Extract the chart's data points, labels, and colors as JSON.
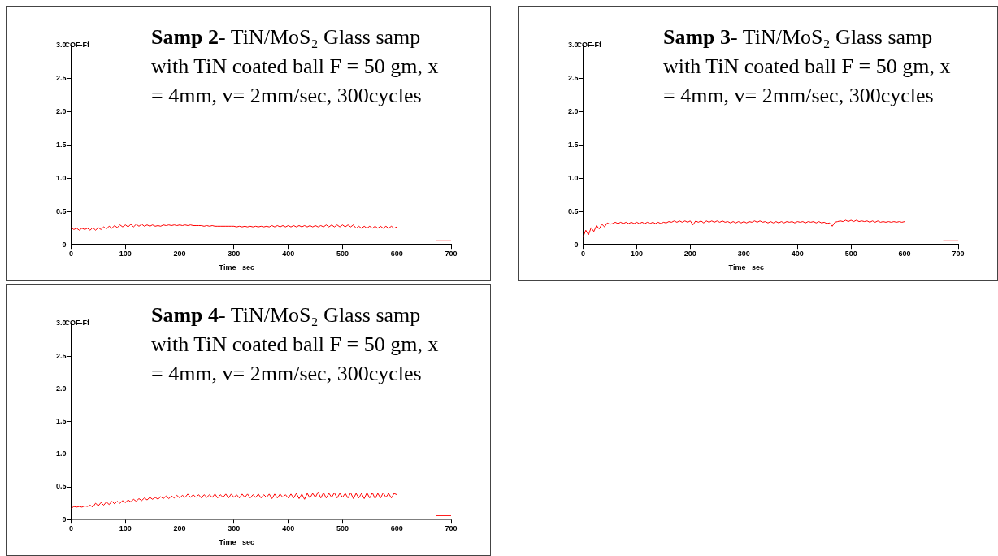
{
  "chart_data": [
    {
      "type": "line",
      "title": "Samp 2",
      "subtitle": "- TiN/MoS₂ Glass samp with TiN coated ball F = 50 gm, x = 4mm, v= 2mm/sec, 300cycles",
      "xlabel": "Time   sec",
      "ylabel": "COF-Ff",
      "xlim": [
        0,
        700
      ],
      "xticks": [
        0,
        100,
        200,
        300,
        400,
        500,
        600,
        700
      ],
      "ylim": [
        0,
        3
      ],
      "yticks": [
        0,
        0.5,
        {
          "value": 1,
          "label": "1.0"
        },
        1.5,
        {
          "value": 2,
          "label": "2.0"
        },
        2.5,
        {
          "value": 3,
          "label": "3.0"
        }
      ],
      "grid": false,
      "legend": false,
      "series": [
        {
          "color": "#ff0000",
          "x": [
            0,
            5,
            10,
            15,
            20,
            25,
            30,
            35,
            40,
            45,
            50,
            55,
            60,
            65,
            70,
            75,
            80,
            85,
            90,
            95,
            100,
            105,
            110,
            115,
            120,
            125,
            130,
            135,
            140,
            145,
            150,
            155,
            160,
            165,
            170,
            175,
            180,
            185,
            190,
            195,
            200,
            205,
            210,
            215,
            220,
            225,
            230,
            235,
            240,
            245,
            250,
            255,
            260,
            265,
            270,
            275,
            280,
            285,
            290,
            295,
            300,
            305,
            310,
            315,
            320,
            325,
            330,
            335,
            340,
            345,
            350,
            355,
            360,
            365,
            370,
            375,
            380,
            385,
            390,
            395,
            400,
            405,
            410,
            415,
            420,
            425,
            430,
            435,
            440,
            445,
            450,
            455,
            460,
            465,
            470,
            475,
            480,
            485,
            490,
            495,
            500,
            505,
            510,
            515,
            520,
            525,
            530,
            535,
            540,
            545,
            550,
            555,
            560,
            565,
            570,
            575,
            580,
            585,
            590,
            595,
            600
          ],
          "values": [
            0.26,
            0.23,
            0.25,
            0.22,
            0.25,
            0.23,
            0.25,
            0.22,
            0.26,
            0.22,
            0.26,
            0.23,
            0.27,
            0.24,
            0.28,
            0.25,
            0.29,
            0.26,
            0.3,
            0.27,
            0.3,
            0.27,
            0.31,
            0.27,
            0.31,
            0.28,
            0.31,
            0.28,
            0.3,
            0.28,
            0.3,
            0.28,
            0.29,
            0.28,
            0.3,
            0.29,
            0.3,
            0.29,
            0.3,
            0.29,
            0.3,
            0.29,
            0.3,
            0.29,
            0.3,
            0.29,
            0.29,
            0.29,
            0.29,
            0.28,
            0.29,
            0.28,
            0.29,
            0.28,
            0.28,
            0.28,
            0.28,
            0.28,
            0.28,
            0.28,
            0.28,
            0.27,
            0.28,
            0.27,
            0.28,
            0.27,
            0.28,
            0.27,
            0.28,
            0.27,
            0.28,
            0.27,
            0.28,
            0.27,
            0.29,
            0.27,
            0.29,
            0.27,
            0.29,
            0.27,
            0.29,
            0.27,
            0.29,
            0.27,
            0.29,
            0.27,
            0.29,
            0.27,
            0.29,
            0.27,
            0.29,
            0.27,
            0.29,
            0.27,
            0.3,
            0.27,
            0.3,
            0.27,
            0.3,
            0.27,
            0.3,
            0.27,
            0.3,
            0.27,
            0.3,
            0.25,
            0.28,
            0.25,
            0.28,
            0.25,
            0.28,
            0.25,
            0.28,
            0.25,
            0.28,
            0.25,
            0.28,
            0.25,
            0.28,
            0.25,
            0.27
          ]
        },
        {
          "color": "#ff0000",
          "x": [
            672,
            700
          ],
          "values": [
            0.06,
            0.06
          ]
        }
      ]
    },
    {
      "type": "line",
      "title": "Samp 3",
      "subtitle": "- TiN/MoS₂ Glass samp with TiN coated ball F = 50 gm, x = 4mm, v= 2mm/sec, 300cycles",
      "xlabel": "Time   sec",
      "ylabel": "COF-Ff",
      "xlim": [
        0,
        700
      ],
      "xticks": [
        0,
        100,
        200,
        300,
        400,
        500,
        600,
        700
      ],
      "ylim": [
        0,
        3
      ],
      "yticks": [
        0,
        0.5,
        {
          "value": 1,
          "label": "1.0"
        },
        1.5,
        {
          "value": 2,
          "label": "2.0"
        },
        2.5,
        {
          "value": 3,
          "label": "3.0"
        }
      ],
      "grid": false,
      "legend": false,
      "series": [
        {
          "color": "#ff0000",
          "x": [
            0,
            5,
            10,
            15,
            20,
            25,
            30,
            35,
            40,
            45,
            50,
            55,
            60,
            65,
            70,
            75,
            80,
            85,
            90,
            95,
            100,
            105,
            110,
            115,
            120,
            125,
            130,
            135,
            140,
            145,
            150,
            155,
            160,
            165,
            170,
            175,
            180,
            185,
            190,
            195,
            200,
            205,
            210,
            215,
            220,
            225,
            230,
            235,
            240,
            245,
            250,
            255,
            260,
            265,
            270,
            275,
            280,
            285,
            290,
            295,
            300,
            305,
            310,
            315,
            320,
            325,
            330,
            335,
            340,
            345,
            350,
            355,
            360,
            365,
            370,
            375,
            380,
            385,
            390,
            395,
            400,
            405,
            410,
            415,
            420,
            425,
            430,
            435,
            440,
            445,
            450,
            455,
            460,
            465,
            470,
            475,
            480,
            485,
            490,
            495,
            500,
            505,
            510,
            515,
            520,
            525,
            530,
            535,
            540,
            545,
            550,
            555,
            560,
            565,
            570,
            575,
            580,
            585,
            590,
            595,
            600
          ],
          "values": [
            0.12,
            0.22,
            0.15,
            0.26,
            0.2,
            0.29,
            0.24,
            0.31,
            0.27,
            0.33,
            0.31,
            0.32,
            0.34,
            0.32,
            0.34,
            0.32,
            0.34,
            0.32,
            0.34,
            0.32,
            0.34,
            0.32,
            0.34,
            0.32,
            0.34,
            0.32,
            0.34,
            0.32,
            0.34,
            0.32,
            0.34,
            0.33,
            0.35,
            0.34,
            0.36,
            0.34,
            0.36,
            0.34,
            0.36,
            0.34,
            0.36,
            0.3,
            0.36,
            0.34,
            0.36,
            0.33,
            0.36,
            0.34,
            0.36,
            0.34,
            0.36,
            0.34,
            0.36,
            0.34,
            0.35,
            0.33,
            0.35,
            0.33,
            0.35,
            0.33,
            0.35,
            0.33,
            0.35,
            0.34,
            0.36,
            0.34,
            0.36,
            0.34,
            0.35,
            0.33,
            0.35,
            0.33,
            0.35,
            0.33,
            0.35,
            0.33,
            0.35,
            0.34,
            0.35,
            0.33,
            0.35,
            0.34,
            0.35,
            0.33,
            0.35,
            0.34,
            0.35,
            0.33,
            0.35,
            0.33,
            0.34,
            0.32,
            0.33,
            0.28,
            0.34,
            0.35,
            0.36,
            0.35,
            0.37,
            0.35,
            0.37,
            0.35,
            0.37,
            0.35,
            0.36,
            0.35,
            0.36,
            0.34,
            0.36,
            0.34,
            0.36,
            0.34,
            0.35,
            0.34,
            0.35,
            0.34,
            0.35,
            0.34,
            0.35,
            0.34,
            0.35
          ]
        },
        {
          "color": "#ff0000",
          "x": [
            672,
            700
          ],
          "values": [
            0.06,
            0.06
          ]
        }
      ]
    },
    {
      "type": "line",
      "title": "Samp 4",
      "subtitle": "- TiN/MoS₂ Glass samp with TiN coated ball F = 50 gm, x = 4mm, v= 2mm/sec, 300cycles",
      "xlabel": "Time   sec",
      "ylabel": "COF-Ff",
      "xlim": [
        0,
        700
      ],
      "xticks": [
        0,
        100,
        200,
        300,
        400,
        500,
        600,
        700
      ],
      "ylim": [
        0,
        3
      ],
      "yticks": [
        0,
        0.5,
        {
          "value": 1,
          "label": "1.0"
        },
        1.5,
        {
          "value": 2,
          "label": "2.0"
        },
        2.5,
        {
          "value": 3,
          "label": "3.0"
        }
      ],
      "grid": false,
      "legend": false,
      "series": [
        {
          "color": "#ff0000",
          "x": [
            0,
            5,
            10,
            15,
            20,
            25,
            30,
            35,
            40,
            45,
            50,
            55,
            60,
            65,
            70,
            75,
            80,
            85,
            90,
            95,
            100,
            105,
            110,
            115,
            120,
            125,
            130,
            135,
            140,
            145,
            150,
            155,
            160,
            165,
            170,
            175,
            180,
            185,
            190,
            195,
            200,
            205,
            210,
            215,
            220,
            225,
            230,
            235,
            240,
            245,
            250,
            255,
            260,
            265,
            270,
            275,
            280,
            285,
            290,
            295,
            300,
            305,
            310,
            315,
            320,
            325,
            330,
            335,
            340,
            345,
            350,
            355,
            360,
            365,
            370,
            375,
            380,
            385,
            390,
            395,
            400,
            405,
            410,
            415,
            420,
            425,
            430,
            435,
            440,
            445,
            450,
            455,
            460,
            465,
            470,
            475,
            480,
            485,
            490,
            495,
            500,
            505,
            510,
            515,
            520,
            525,
            530,
            535,
            540,
            545,
            550,
            555,
            560,
            565,
            570,
            575,
            580,
            585,
            590,
            595,
            600
          ],
          "values": [
            0.17,
            0.2,
            0.19,
            0.2,
            0.19,
            0.21,
            0.2,
            0.22,
            0.19,
            0.25,
            0.21,
            0.26,
            0.22,
            0.27,
            0.23,
            0.28,
            0.24,
            0.28,
            0.25,
            0.29,
            0.26,
            0.3,
            0.27,
            0.31,
            0.28,
            0.32,
            0.29,
            0.33,
            0.3,
            0.34,
            0.31,
            0.34,
            0.31,
            0.35,
            0.32,
            0.36,
            0.32,
            0.36,
            0.33,
            0.37,
            0.33,
            0.37,
            0.34,
            0.39,
            0.34,
            0.38,
            0.34,
            0.38,
            0.33,
            0.38,
            0.34,
            0.38,
            0.34,
            0.39,
            0.33,
            0.38,
            0.34,
            0.39,
            0.33,
            0.39,
            0.34,
            0.38,
            0.33,
            0.39,
            0.34,
            0.39,
            0.33,
            0.38,
            0.34,
            0.39,
            0.33,
            0.38,
            0.34,
            0.39,
            0.32,
            0.39,
            0.33,
            0.39,
            0.34,
            0.38,
            0.33,
            0.39,
            0.33,
            0.4,
            0.32,
            0.39,
            0.31,
            0.4,
            0.33,
            0.4,
            0.34,
            0.42,
            0.33,
            0.41,
            0.33,
            0.4,
            0.34,
            0.41,
            0.33,
            0.4,
            0.34,
            0.4,
            0.33,
            0.41,
            0.32,
            0.4,
            0.33,
            0.4,
            0.32,
            0.41,
            0.33,
            0.41,
            0.32,
            0.4,
            0.33,
            0.41,
            0.34,
            0.4,
            0.33,
            0.4,
            0.38
          ]
        },
        {
          "color": "#ff0000",
          "x": [
            672,
            700
          ],
          "values": [
            0.06,
            0.06
          ]
        }
      ]
    }
  ]
}
